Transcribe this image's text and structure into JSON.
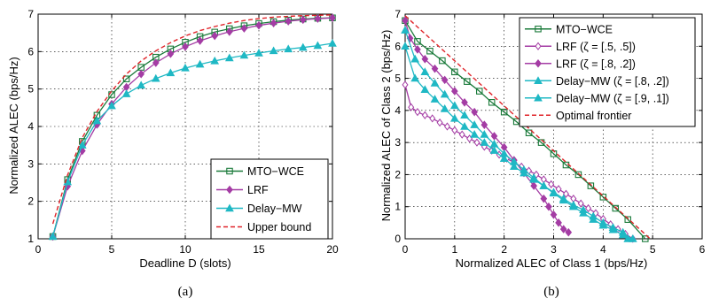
{
  "chart_data": [
    {
      "type": "line",
      "caption": "(a)",
      "xlabel": "Deadline D (slots)",
      "ylabel": "Normalized ALEC (bps/Hz)",
      "xlim": [
        0,
        20
      ],
      "ylim": [
        1,
        7
      ],
      "xticks": [
        0,
        5,
        10,
        15,
        20
      ],
      "yticks": [
        1,
        2,
        3,
        4,
        5,
        6,
        7
      ],
      "grid": true,
      "legend_position": "bottom-right",
      "x": [
        1,
        2,
        3,
        4,
        5,
        6,
        7,
        8,
        9,
        10,
        11,
        12,
        13,
        14,
        15,
        16,
        17,
        18,
        19,
        20
      ],
      "series": [
        {
          "name": "MTO−WCE",
          "color": "#1a7a3a",
          "marker": "square",
          "dash": false,
          "values": [
            1.06,
            2.58,
            3.6,
            4.3,
            4.85,
            5.27,
            5.58,
            5.85,
            6.07,
            6.25,
            6.4,
            6.52,
            6.61,
            6.69,
            6.75,
            6.8,
            6.84,
            6.87,
            6.89,
            6.9
          ]
        },
        {
          "name": "LRF",
          "color": "#a43ca4",
          "marker": "diamond",
          "dash": false,
          "values": [
            1.06,
            2.4,
            3.35,
            4.05,
            4.6,
            5.05,
            5.4,
            5.7,
            5.94,
            6.13,
            6.29,
            6.42,
            6.53,
            6.62,
            6.7,
            6.76,
            6.81,
            6.85,
            6.88,
            6.9
          ]
        },
        {
          "name": "Delay−MW",
          "color": "#1fb8c4",
          "marker": "triangle",
          "dash": false,
          "values": [
            1.06,
            2.52,
            3.5,
            4.15,
            4.55,
            4.87,
            5.1,
            5.28,
            5.43,
            5.56,
            5.66,
            5.75,
            5.83,
            5.9,
            5.96,
            6.02,
            6.07,
            6.11,
            6.16,
            6.22
          ]
        },
        {
          "name": "Upper bound",
          "color": "#e0242a",
          "marker": "none",
          "dash": true,
          "values": [
            1.4,
            2.7,
            3.7,
            4.4,
            4.95,
            5.4,
            5.75,
            6.02,
            6.24,
            6.42,
            6.56,
            6.67,
            6.76,
            6.83,
            6.88,
            6.92,
            6.94,
            6.96,
            6.97,
            6.98
          ]
        }
      ]
    },
    {
      "type": "line",
      "caption": "(b)",
      "xlabel": "Normalized ALEC of Class 1 (bps/Hz)",
      "ylabel": "Normalized ALEC of Class 2 (bps/Hz)",
      "xlim": [
        0,
        6
      ],
      "ylim": [
        0,
        7
      ],
      "xticks": [
        0,
        1,
        2,
        3,
        4,
        5,
        6
      ],
      "yticks": [
        0,
        1,
        2,
        3,
        4,
        5,
        6,
        7
      ],
      "grid": true,
      "legend_position": "top-right",
      "series": [
        {
          "name": "MTO−WCE",
          "color": "#1a7a3a",
          "marker": "square",
          "dash": false,
          "x": [
            0,
            0.25,
            0.5,
            0.75,
            1.0,
            1.25,
            1.5,
            1.75,
            2.0,
            2.25,
            2.5,
            2.75,
            3.0,
            3.25,
            3.5,
            3.75,
            4.0,
            4.25,
            4.5,
            4.85
          ],
          "y": [
            6.8,
            6.15,
            5.85,
            5.55,
            5.2,
            4.9,
            4.6,
            4.25,
            3.95,
            3.65,
            3.3,
            3.0,
            2.65,
            2.3,
            2.0,
            1.65,
            1.3,
            0.95,
            0.6,
            0.0
          ]
        },
        {
          "name": "LRF (ζ = [.5, .5])",
          "color": "#a43ca4",
          "marker": "diamond-open",
          "dash": false,
          "x": [
            0,
            0.12,
            0.25,
            0.4,
            0.55,
            0.7,
            0.85,
            1.0,
            1.15,
            1.3,
            1.45,
            1.6,
            1.75,
            1.9,
            2.05,
            2.2,
            2.35,
            2.5,
            2.65,
            2.8,
            2.95,
            3.1,
            3.25,
            3.4,
            3.55,
            3.7,
            3.85,
            4.0,
            4.15,
            4.3,
            4.45,
            4.6
          ],
          "y": [
            4.8,
            4.1,
            3.95,
            3.85,
            3.75,
            3.62,
            3.5,
            3.38,
            3.25,
            3.12,
            3.0,
            2.87,
            2.75,
            2.62,
            2.5,
            2.38,
            2.25,
            2.12,
            2.0,
            1.85,
            1.7,
            1.55,
            1.4,
            1.25,
            1.1,
            0.95,
            0.8,
            0.62,
            0.45,
            0.3,
            0.15,
            0.0
          ]
        },
        {
          "name": "LRF (ζ = [.8, .2])",
          "color": "#a43ca4",
          "marker": "diamond",
          "dash": false,
          "x": [
            0,
            0.1,
            0.25,
            0.4,
            0.6,
            0.8,
            1.0,
            1.2,
            1.4,
            1.6,
            1.8,
            2.0,
            2.2,
            2.4,
            2.6,
            2.8,
            2.9,
            3.0,
            3.1,
            3.2,
            3.3
          ],
          "y": [
            6.8,
            6.25,
            5.9,
            5.6,
            5.3,
            4.95,
            4.6,
            4.25,
            3.95,
            3.55,
            3.2,
            2.85,
            2.45,
            2.05,
            1.65,
            1.25,
            1.0,
            0.75,
            0.5,
            0.3,
            0.2
          ]
        },
        {
          "name": "Delay−MW (ζ = [.8, .2])",
          "color": "#1fb8c4",
          "marker": "triangle",
          "dash": false,
          "x": [
            0,
            0.2,
            0.4,
            0.6,
            0.8,
            1.0,
            1.2,
            1.4,
            1.6,
            1.8,
            2.0,
            2.2,
            2.4,
            2.6,
            2.8,
            3.0,
            3.2,
            3.4,
            3.6,
            3.8,
            4.0,
            4.2,
            4.4,
            4.5
          ],
          "y": [
            6.0,
            5.0,
            4.65,
            4.35,
            4.05,
            3.75,
            3.5,
            3.25,
            3.0,
            2.75,
            2.5,
            2.25,
            2.05,
            1.85,
            1.65,
            1.45,
            1.25,
            1.05,
            0.9,
            0.7,
            0.5,
            0.35,
            0.2,
            0.0
          ]
        },
        {
          "name": "Delay−MW (ζ = [.9, .1])",
          "color": "#1fb8c4",
          "marker": "triangle",
          "dash": false,
          "x": [
            0,
            0.2,
            0.4,
            0.6,
            0.8,
            1.0,
            1.2,
            1.4,
            1.6,
            1.8,
            2.0,
            2.2,
            2.4,
            2.6,
            2.8,
            3.0,
            3.2,
            3.4,
            3.6,
            3.8,
            4.0,
            4.2,
            4.4,
            4.6
          ],
          "y": [
            6.5,
            5.6,
            5.2,
            4.85,
            4.5,
            4.15,
            3.85,
            3.55,
            3.25,
            2.95,
            2.65,
            2.4,
            2.15,
            1.9,
            1.65,
            1.42,
            1.2,
            1.0,
            0.8,
            0.6,
            0.42,
            0.28,
            0.12,
            0.0
          ]
        },
        {
          "name": "Optimal frontier",
          "color": "#e0242a",
          "marker": "none",
          "dash": true,
          "x": [
            0,
            4.95
          ],
          "y": [
            6.95,
            0
          ]
        }
      ]
    }
  ]
}
